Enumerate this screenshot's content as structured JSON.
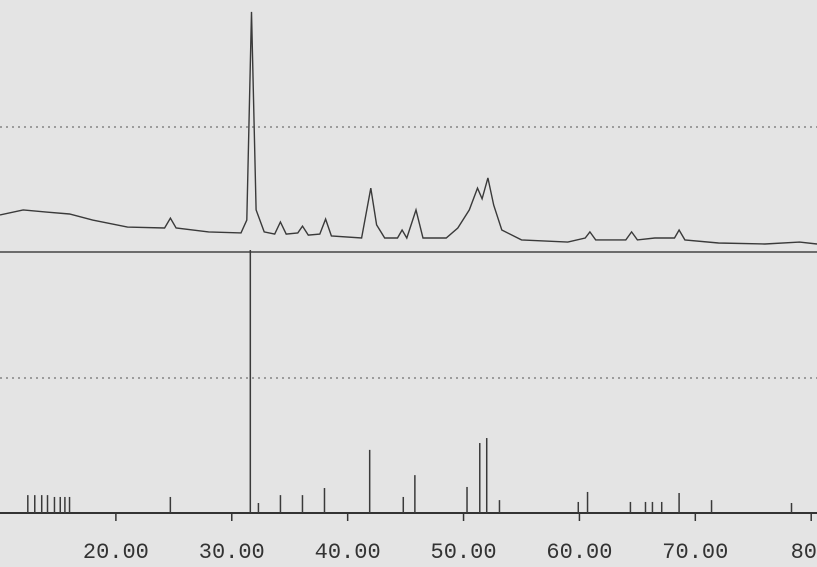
{
  "chart_data": [
    {
      "type": "line",
      "color": "#3a3a3a",
      "xlim": [
        10,
        80.5
      ],
      "ylim": [
        0,
        100
      ],
      "x": [
        10,
        12,
        14,
        16,
        18,
        21,
        24.2,
        24.7,
        25.2,
        28,
        30.8,
        31.3,
        31.7,
        32.1,
        32.8,
        33.7,
        34.2,
        34.7,
        35.7,
        36.1,
        36.6,
        37.6,
        38.1,
        38.6,
        41.2,
        42.0,
        42.5,
        43.2,
        44.3,
        44.7,
        45.1,
        45.9,
        46.5,
        48.5,
        49.5,
        50.5,
        51.2,
        51.6,
        52.1,
        52.6,
        53.3,
        55,
        59,
        60.5,
        60.9,
        61.4,
        64,
        64.5,
        65,
        66.5,
        68.2,
        68.6,
        69.1,
        72,
        76,
        79,
        80.5
      ],
      "values": [
        15.3,
        17.4,
        16.5,
        15.7,
        13.2,
        10.3,
        9.9,
        14.0,
        9.9,
        8.3,
        7.9,
        13.2,
        99.2,
        17.4,
        8.3,
        7.4,
        12.4,
        7.4,
        7.9,
        10.7,
        7.0,
        7.4,
        13.6,
        6.6,
        5.8,
        26.4,
        11.2,
        5.8,
        5.8,
        9.1,
        5.8,
        17.4,
        5.8,
        5.8,
        9.9,
        17.4,
        26.4,
        22,
        30.6,
        19.4,
        9.1,
        5.0,
        4.1,
        5.8,
        8.3,
        5.0,
        5.0,
        8.3,
        5.0,
        5.8,
        5.8,
        9.1,
        5.0,
        3.7,
        3.3,
        4.1,
        3.3
      ]
    },
    {
      "type": "stem",
      "color": "#3a3a3a",
      "xlim": [
        10,
        80.5
      ],
      "ylim": [
        0,
        100
      ],
      "x": [
        12.4,
        13.0,
        13.6,
        14.1,
        14.7,
        15.2,
        15.6,
        16.0,
        24.7,
        31.6,
        32.3,
        34.2,
        36.1,
        38.0,
        41.9,
        44.8,
        45.8,
        50.3,
        51.4,
        52.0,
        53.1,
        59.9,
        60.7,
        64.4,
        65.7,
        66.3,
        67.1,
        68.6,
        71.4,
        78.3
      ],
      "values": [
        6.8,
        6.8,
        6.8,
        6.8,
        6.1,
        6.1,
        6.1,
        6.1,
        6.1,
        100,
        3.8,
        6.8,
        6.8,
        9.5,
        24,
        6.1,
        14.4,
        9.9,
        26.6,
        28.5,
        4.9,
        4.2,
        8,
        4.2,
        4.2,
        4.2,
        4.2,
        7.6,
        4.9,
        3.8
      ],
      "xticks": [
        {
          "value": 20,
          "label": "20.00"
        },
        {
          "value": 30,
          "label": "30.00"
        },
        {
          "value": 40,
          "label": "40.00"
        },
        {
          "value": 50,
          "label": "50.00"
        },
        {
          "value": 60,
          "label": "60.00"
        },
        {
          "value": 70,
          "label": "70.00"
        },
        {
          "value": 80,
          "label": "80"
        }
      ]
    }
  ]
}
